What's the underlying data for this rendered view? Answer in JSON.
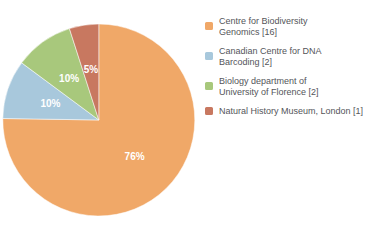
{
  "chart_data": {
    "type": "pie",
    "labels": [
      "Centre for Biodiversity\nGenomics [16]",
      "Canadian Centre for DNA\nBarcoding [2]",
      "Biology department of\nUniversity of Florence [2]",
      "Natural History Museum, London [1]"
    ],
    "values": [
      76,
      10,
      10,
      5
    ],
    "value_labels": [
      "76%",
      "10%",
      "10%",
      "5%"
    ],
    "colors": [
      "#f0a868",
      "#a8c8dc",
      "#a8c87c",
      "#c87860"
    ],
    "data_labels": true,
    "legend": "upper right"
  }
}
